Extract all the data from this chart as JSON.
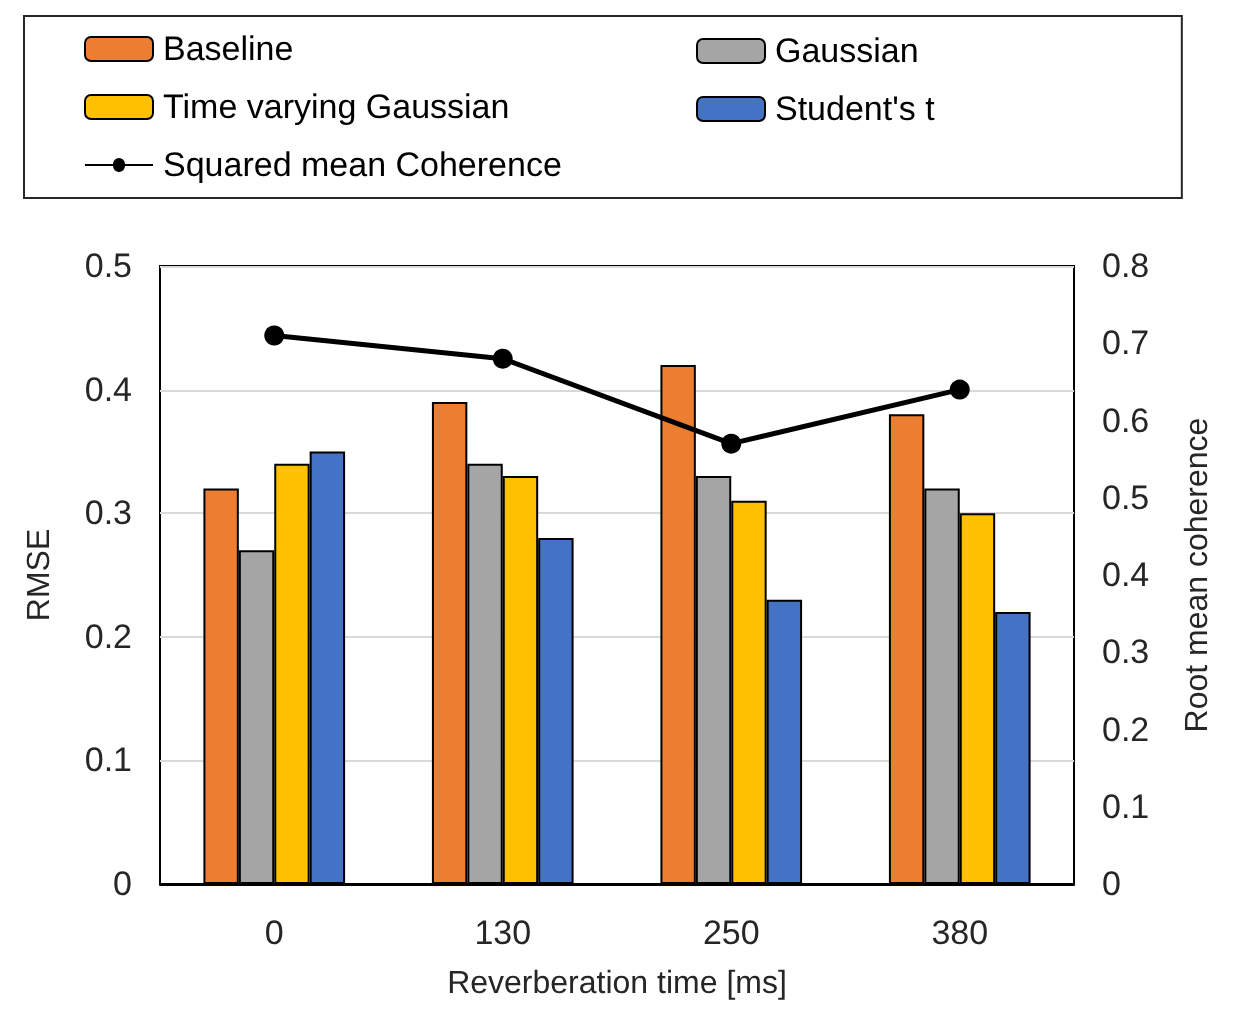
{
  "chart_data": {
    "type": "bar",
    "xlabel": "Reverberation time [ms]",
    "ylabel": "RMSE",
    "y2label": "Root mean coherence",
    "categories": [
      "0",
      "130",
      "250",
      "380"
    ],
    "series": [
      {
        "name": "Baseline",
        "color": "#ed7d31",
        "values": [
          0.32,
          0.39,
          0.42,
          0.38
        ]
      },
      {
        "name": "Gaussian",
        "color": "#a5a5a5",
        "values": [
          0.27,
          0.34,
          0.33,
          0.32
        ]
      },
      {
        "name": "Time varying Gaussian",
        "color": "#ffc000",
        "values": [
          0.34,
          0.33,
          0.31,
          0.3
        ]
      },
      {
        "name": "Student's t",
        "color": "#4472c4",
        "values": [
          0.35,
          0.28,
          0.23,
          0.22
        ]
      },
      {
        "name": "Squared mean Coherence",
        "type": "line",
        "axis": "y2",
        "color": "#000000",
        "values": [
          0.71,
          0.68,
          0.57,
          0.64
        ]
      }
    ],
    "ylim": [
      0,
      0.5
    ],
    "yticks": [
      0,
      0.1,
      0.2,
      0.3,
      0.4,
      0.5
    ],
    "y2lim": [
      0,
      0.8
    ],
    "y2ticks": [
      0,
      0.1,
      0.2,
      0.3,
      0.4,
      0.5,
      0.6,
      0.7,
      0.8
    ],
    "grid": "y",
    "legend": "top",
    "marker": "circle"
  }
}
